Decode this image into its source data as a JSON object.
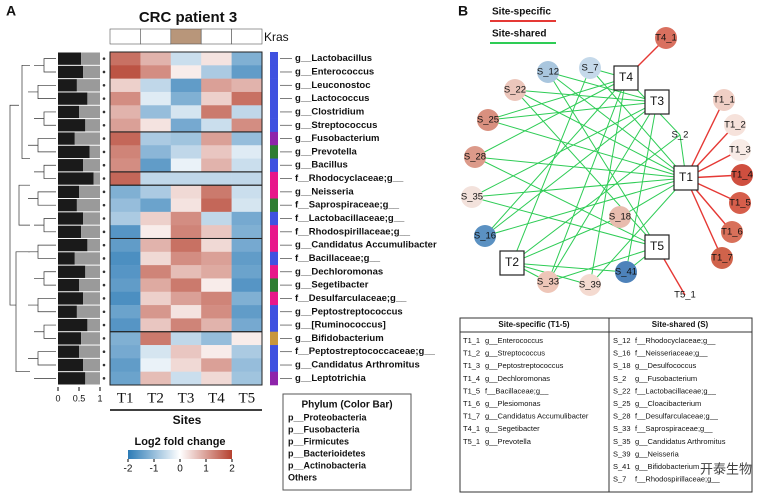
{
  "panel_a": {
    "letter": "A",
    "title": "CRC patient 3",
    "annotation": "Kras",
    "kras_colors": [
      "#ffffff",
      "#ffffff",
      "#b8967a",
      "#ffffff",
      "#ffffff"
    ],
    "heatmap": {
      "type": "heatmap",
      "columns": [
        "T1",
        "T2",
        "T3",
        "T4",
        "T5"
      ],
      "rows": [
        "g__Lactobacillus",
        "g__Enterococcus",
        "g__Leuconostoc",
        "g__Lactococcus",
        "g__Clostridium",
        "g__Streptococcus",
        "g__Fusobacterium",
        "g__Prevotella",
        "g__Bacillus",
        "f__Rhodocyclaceae;g__",
        "g__Neisseria",
        "f__Saprospiraceae;g__",
        "f__Lactobacillaceae;g__",
        "f__Rhodospirillaceae;g__",
        "g__Candidatus Accumulibacter",
        "f__Bacillaceae;g__",
        "g__Dechloromonas",
        "g__Segetibacter",
        "f__Desulfarculaceae;g__",
        "g__Peptostreptococcus",
        "g__[Ruminococcus]",
        "g__Bifidobacterium",
        "f__Peptostreptococcaceae;g__",
        "g__Candidatus Arthromitus",
        "g__Leptotrichia"
      ],
      "values": [
        [
          1.5,
          0.8,
          -0.5,
          0.3,
          -1.2
        ],
        [
          1.8,
          1.2,
          0.2,
          -0.8,
          -1.5
        ],
        [
          0.5,
          -0.6,
          -1.5,
          1.0,
          0.8
        ],
        [
          1.2,
          -0.3,
          -1.2,
          0.5,
          1.5
        ],
        [
          0.8,
          -1.0,
          -0.4,
          1.4,
          -0.6
        ],
        [
          1.0,
          0.3,
          -1.3,
          -0.5,
          1.2
        ],
        [
          1.6,
          -0.8,
          -0.9,
          1.0,
          -1.0
        ],
        [
          1.3,
          -1.1,
          -0.6,
          0.6,
          -0.3
        ],
        [
          1.2,
          -1.5,
          -0.2,
          0.8,
          -0.5
        ],
        [
          1.6,
          -0.6,
          -0.6,
          -0.6,
          -0.6
        ],
        [
          -1.2,
          -0.8,
          0.4,
          1.4,
          -0.5
        ],
        [
          -1.0,
          -1.4,
          0.3,
          1.6,
          -0.4
        ],
        [
          -0.8,
          0.5,
          1.2,
          -0.6,
          -1.3
        ],
        [
          -1.6,
          0.2,
          1.3,
          0.6,
          -1.2
        ],
        [
          -1.5,
          0.8,
          1.5,
          0.4,
          -1.3
        ],
        [
          -1.7,
          0.4,
          1.2,
          1.0,
          -1.5
        ],
        [
          -1.6,
          1.3,
          0.7,
          0.9,
          -1.4
        ],
        [
          -1.5,
          0.9,
          1.4,
          0.2,
          -1.6
        ],
        [
          -1.7,
          0.5,
          1.0,
          1.3,
          -1.2
        ],
        [
          -1.4,
          1.1,
          0.3,
          1.2,
          -1.5
        ],
        [
          -1.6,
          0.6,
          1.3,
          0.8,
          -1.3
        ],
        [
          -1.2,
          1.4,
          -0.6,
          -1.0,
          0.2
        ],
        [
          -1.3,
          -0.4,
          0.6,
          0.2,
          -0.8
        ],
        [
          -1.5,
          -0.2,
          0.4,
          1.0,
          -1.0
        ],
        [
          -1.4,
          0.7,
          -0.5,
          0.4,
          -0.9
        ]
      ],
      "row_colors": [
        "#3f51e0",
        "#3f51e0",
        "#3f51e0",
        "#3f51e0",
        "#3f51e0",
        "#3f51e0",
        "#8e24aa",
        "#2e7d32",
        "#3f51e0",
        "#e8178a",
        "#e8178a",
        "#2e7d32",
        "#3f51e0",
        "#e8178a",
        "#e8178a",
        "#3f51e0",
        "#e8178a",
        "#2e7d32",
        "#e8178a",
        "#3f51e0",
        "#3f51e0",
        "#c8963c",
        "#3f51e0",
        "#3f51e0",
        "#8e24aa"
      ],
      "color_range": [
        -2,
        2
      ],
      "colors": [
        "#2c7bb6",
        "#ffffff",
        "#b5412f"
      ]
    },
    "abundance": {
      "values": [
        0.55,
        0.6,
        0.45,
        0.7,
        0.5,
        0.65,
        0.4,
        0.75,
        0.6,
        0.85,
        0.5,
        0.45,
        0.6,
        0.55,
        0.7,
        0.4,
        0.65,
        0.5,
        0.6,
        0.45,
        0.7,
        0.55,
        0.5,
        0.6,
        0.65
      ],
      "xlim": [
        0,
        1
      ],
      "xticks": [
        0,
        0.5,
        1
      ]
    },
    "x_label": "Sites",
    "legend": {
      "title": "Log2 fold change",
      "ticks": [
        -2,
        -1,
        0,
        1,
        2
      ]
    },
    "phylum_legend": {
      "title": "Phylum (Color Bar)",
      "items": [
        {
          "label": "p__Proteobacteria",
          "color": "#e8178a"
        },
        {
          "label": "p__Fusobacteria",
          "color": "#8e24aa"
        },
        {
          "label": "p__Firmicutes",
          "color": "#3f51e0"
        },
        {
          "label": "p__Bacterioidetes",
          "color": "#2e7d32"
        },
        {
          "label": "p__Actinobacteria",
          "color": "#c8963c"
        },
        {
          "label": "Others",
          "color": "#000000"
        }
      ]
    }
  },
  "panel_b": {
    "letter": "B",
    "legend": [
      {
        "label": "Site-specific",
        "color": "#e53935"
      },
      {
        "label": "Site-shared",
        "color": "#2ecc55"
      }
    ],
    "nodes": [
      {
        "label": "T4_1",
        "shape": "circle",
        "color": "#d9705f"
      },
      {
        "label": "T4",
        "shape": "square"
      },
      {
        "label": "S_12",
        "shape": "circle",
        "color": "#a9c6de"
      },
      {
        "label": "S_7",
        "shape": "circle",
        "color": "#c5d9ea"
      },
      {
        "label": "S_22",
        "shape": "circle",
        "color": "#ecc6bb"
      },
      {
        "label": "T3",
        "shape": "square"
      },
      {
        "label": "T1_1",
        "shape": "circle",
        "color": "#f0cfc5"
      },
      {
        "label": "S_25",
        "shape": "circle",
        "color": "#d9907f"
      },
      {
        "label": "T1_2",
        "shape": "circle",
        "color": "#f6e2db"
      },
      {
        "label": "S_2",
        "shape": "none"
      },
      {
        "label": "T1_3",
        "shape": "circle",
        "color": "#f8ebe6"
      },
      {
        "label": "S_28",
        "shape": "circle",
        "color": "#dc9a8a"
      },
      {
        "label": "T1",
        "shape": "square"
      },
      {
        "label": "T1_4",
        "shape": "circle",
        "color": "#cf4f3f"
      },
      {
        "label": "S_35",
        "shape": "circle",
        "color": "#f3e2dc"
      },
      {
        "label": "T1_5",
        "shape": "circle",
        "color": "#d65e4b"
      },
      {
        "label": "S_18",
        "shape": "circle",
        "color": "#e8bcae"
      },
      {
        "label": "T1_6",
        "shape": "circle",
        "color": "#d8705a"
      },
      {
        "label": "S_16",
        "shape": "circle",
        "color": "#5b91c2"
      },
      {
        "label": "T5",
        "shape": "square"
      },
      {
        "label": "T1_7",
        "shape": "circle",
        "color": "#d0634b"
      },
      {
        "label": "T2",
        "shape": "square"
      },
      {
        "label": "S_41",
        "shape": "circle",
        "color": "#4d82ba"
      },
      {
        "label": "S_33",
        "shape": "circle",
        "color": "#eec6b8"
      },
      {
        "label": "S_39",
        "shape": "circle",
        "color": "#f4dad0"
      },
      {
        "label": "T5_1",
        "shape": "none"
      }
    ],
    "table": {
      "headers": [
        "Site-specific (T1-5)",
        "Site-shared (S)"
      ],
      "left": [
        [
          "T1_1",
          "g__Enterococcus"
        ],
        [
          "T1_2",
          "g__Streptococcus"
        ],
        [
          "T1_3",
          "g__Peptostreptococcus"
        ],
        [
          "T1_4",
          "g__Dechloromonas"
        ],
        [
          "T1_5",
          "f__Bacillaceae;g__"
        ],
        [
          "T1_6",
          "g__Plesiomonas"
        ],
        [
          "T1_7",
          "g__Candidatus Accumulibacter"
        ],
        [
          "T4_1",
          "g__Segetibacter"
        ],
        [
          "T5_1",
          "g__Prevotella"
        ]
      ],
      "right": [
        [
          "S_12",
          "f__Rhodocyclaceae;g__"
        ],
        [
          "S_16",
          "f__Neisseriaceae;g__"
        ],
        [
          "S_18",
          "g__Desulfococcus"
        ],
        [
          "S_2",
          "g__Fusobacterium"
        ],
        [
          "S_22",
          "f__Lactobacillaceae;g__"
        ],
        [
          "S_25",
          "g__Cloacibacterium"
        ],
        [
          "S_28",
          "f__Desulfarculaceae;g__"
        ],
        [
          "S_33",
          "f__Saprospiraceae;g__"
        ],
        [
          "S_35",
          "g__Candidatus Arthromitus"
        ],
        [
          "S_39",
          "g__Neisseria"
        ],
        [
          "S_41",
          "g__Bifidobacterium"
        ],
        [
          "S_7",
          "f__Rhodospirillaceae;g__"
        ]
      ]
    }
  },
  "watermark": "开泰生物"
}
